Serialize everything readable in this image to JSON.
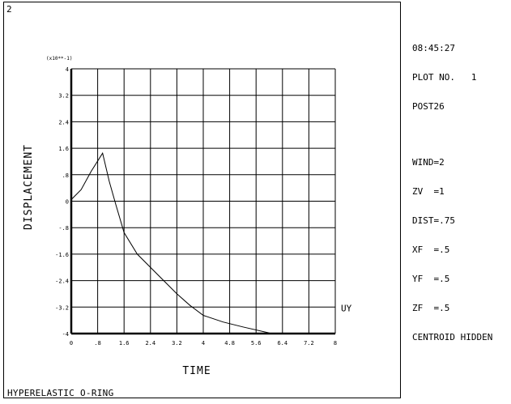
{
  "window": {
    "number": "2",
    "footer_title": "HYPERELASTIC O-RING"
  },
  "side_panel": {
    "time": "08:45:27",
    "plot_no": "PLOT NO.   1",
    "program": "POST26",
    "settings": [
      "WIND=2",
      "ZV  =1",
      "DIST=.75",
      "XF  =.5",
      "YF  =.5",
      "ZF  =.5",
      "CENTROID HIDDEN"
    ]
  },
  "chart_data": {
    "type": "line",
    "xlabel": "TIME",
    "ylabel": "DISPLACEMENT",
    "y_multiplier_label": "(x10**-1)",
    "xlim": [
      0,
      8
    ],
    "ylim": [
      -4,
      4
    ],
    "x_ticks": [
      "0",
      ".8",
      "1.6",
      "2.4",
      "3.2",
      "4",
      "4.8",
      "5.6",
      "6.4",
      "7.2",
      "8"
    ],
    "y_ticks": [
      "4",
      "3.2",
      "2.4",
      "1.6",
      ".8",
      "0",
      "-.8",
      "-1.6",
      "-2.4",
      "-3.2",
      "-4"
    ],
    "x_tick_values": [
      0,
      0.8,
      1.6,
      2.4,
      3.2,
      4,
      4.8,
      5.6,
      6.4,
      7.2,
      8
    ],
    "y_tick_values": [
      4,
      3.2,
      2.4,
      1.6,
      0.8,
      0,
      -0.8,
      -1.6,
      -2.4,
      -3.2,
      -4
    ],
    "grid": true,
    "series": [
      {
        "name": "UY",
        "color": "#000000",
        "x": [
          0,
          0.3,
          0.6,
          0.95,
          1.15,
          1.35,
          1.6,
          2.0,
          2.6,
          3.2,
          3.6,
          4.0,
          4.6,
          5.2,
          6.0
        ],
        "y": [
          0.05,
          0.35,
          0.9,
          1.45,
          0.6,
          -0.1,
          -0.95,
          -1.6,
          -2.2,
          -2.8,
          -3.15,
          -3.45,
          -3.65,
          -3.8,
          -3.98
        ]
      }
    ]
  }
}
